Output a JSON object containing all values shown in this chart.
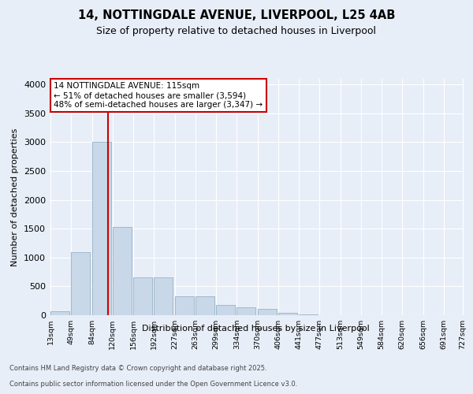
{
  "title_line1": "14, NOTTINGDALE AVENUE, LIVERPOOL, L25 4AB",
  "title_line2": "Size of property relative to detached houses in Liverpool",
  "xlabel": "Distribution of detached houses by size in Liverpool",
  "ylabel": "Number of detached properties",
  "annotation_line1": "14 NOTTINGDALE AVENUE: 115sqm",
  "annotation_line2": "← 51% of detached houses are smaller (3,594)",
  "annotation_line3": "48% of semi-detached houses are larger (3,347) →",
  "property_size_sqm": 115,
  "bin_left_edges": [
    13,
    49,
    84,
    120,
    156,
    192,
    227,
    263,
    299,
    334,
    370,
    406,
    441,
    477,
    513,
    549,
    584,
    620,
    656,
    691
  ],
  "bin_right_edges": [
    49,
    84,
    120,
    156,
    192,
    227,
    263,
    299,
    334,
    370,
    406,
    441,
    477,
    513,
    549,
    584,
    620,
    656,
    691,
    727
  ],
  "bin_labels": [
    "13sqm",
    "49sqm",
    "84sqm",
    "120sqm",
    "156sqm",
    "192sqm",
    "227sqm",
    "263sqm",
    "299sqm",
    "334sqm",
    "370sqm",
    "406sqm",
    "441sqm",
    "477sqm",
    "513sqm",
    "549sqm",
    "584sqm",
    "620sqm",
    "656sqm",
    "691sqm",
    "727sqm"
  ],
  "bar_values": [
    75,
    1100,
    3000,
    1530,
    660,
    660,
    330,
    330,
    175,
    130,
    110,
    40,
    10,
    5,
    2,
    2,
    2,
    2,
    2,
    2
  ],
  "bar_color": "#c8d8e8",
  "bar_edge_color": "#a0b8cc",
  "vline_color": "#cc0000",
  "ylim": [
    0,
    4100
  ],
  "yticks": [
    0,
    500,
    1000,
    1500,
    2000,
    2500,
    3000,
    3500,
    4000
  ],
  "bg_color": "#e8eef8",
  "plot_bg_color": "#e8eef8",
  "grid_color": "#ffffff",
  "annotation_box_facecolor": "#ffffff",
  "annotation_box_edgecolor": "#cc0000",
  "footer_line1": "Contains HM Land Registry data © Crown copyright and database right 2025.",
  "footer_line2": "Contains public sector information licensed under the Open Government Licence v3.0."
}
